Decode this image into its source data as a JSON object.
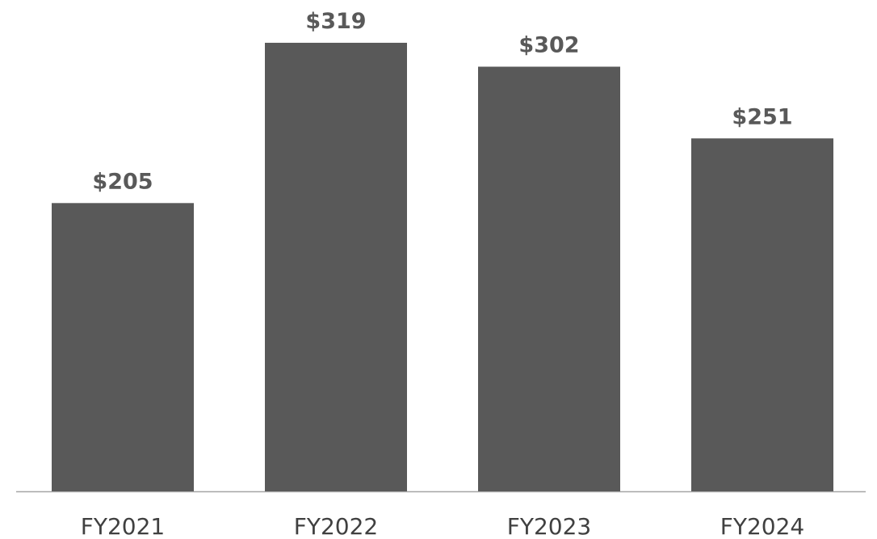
{
  "chart_data": {
    "type": "bar",
    "categories": [
      "FY2021",
      "FY2022",
      "FY2023",
      "FY2024"
    ],
    "values": [
      205,
      319,
      302,
      251
    ],
    "data_labels": [
      "$205",
      "$319",
      "$302",
      "$251"
    ],
    "ylim": [
      0,
      330
    ],
    "grid": false,
    "legend": "none"
  },
  "colors": {
    "bar": "#595959",
    "value_label": "#595959",
    "category_label": "#404040",
    "axis": "#a6a6a6",
    "background": "#ffffff"
  }
}
